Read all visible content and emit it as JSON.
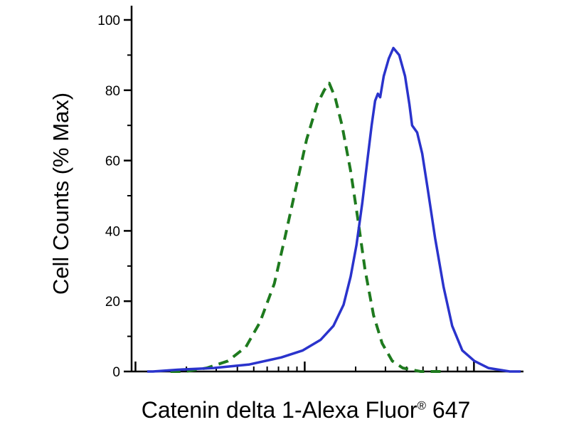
{
  "chart_data": {
    "type": "line",
    "title": "",
    "ylabel": "Cell Counts (% Max)",
    "xlabel": {
      "main": "Catenin delta 1-Alexa Fluor",
      "sup": "®",
      "end": " 647"
    },
    "ylim": [
      0,
      100
    ],
    "yticks": [
      "0",
      "20",
      "40",
      "60",
      "80",
      "100"
    ],
    "y_minor_ticks": [
      10,
      30,
      50,
      70,
      90
    ],
    "x_scale": "log",
    "x_tick_labels_visible": false,
    "x_decades": {
      "start_norm": 0.01,
      "decade_width_norm": 0.435,
      "count": 3
    },
    "grid": false,
    "legend": "none",
    "axis_color": "#000000",
    "background": "#ffffff",
    "series": [
      {
        "name": "control-dashed-green",
        "color": "#1e7a1e",
        "style": "dashed",
        "dash": [
          14,
          9
        ],
        "stroke_width": 4,
        "peak_percent": 82,
        "points": [
          [
            0.1,
            0
          ],
          [
            0.138,
            0
          ],
          [
            0.193,
            1
          ],
          [
            0.248,
            3
          ],
          [
            0.294,
            7
          ],
          [
            0.33,
            14
          ],
          [
            0.367,
            25
          ],
          [
            0.394,
            38
          ],
          [
            0.422,
            52
          ],
          [
            0.45,
            66
          ],
          [
            0.477,
            76
          ],
          [
            0.495,
            80
          ],
          [
            0.508,
            82
          ],
          [
            0.523,
            78
          ],
          [
            0.541,
            70
          ],
          [
            0.563,
            57
          ],
          [
            0.582,
            43
          ],
          [
            0.6,
            29
          ],
          [
            0.622,
            16
          ],
          [
            0.644,
            8
          ],
          [
            0.67,
            3
          ],
          [
            0.697,
            1
          ],
          [
            0.743,
            0
          ],
          [
            0.8,
            0
          ]
        ]
      },
      {
        "name": "catenin-delta-1-solid-blue",
        "color": "#2a33cc",
        "style": "solid",
        "dash": null,
        "stroke_width": 3.5,
        "peak_percent": 92,
        "points": [
          [
            0.04,
            0
          ],
          [
            0.055,
            0
          ],
          [
            0.119,
            0.5
          ],
          [
            0.211,
            1
          ],
          [
            0.303,
            2
          ],
          [
            0.385,
            4
          ],
          [
            0.44,
            6
          ],
          [
            0.486,
            9
          ],
          [
            0.519,
            13
          ],
          [
            0.545,
            19
          ],
          [
            0.563,
            27
          ],
          [
            0.578,
            36
          ],
          [
            0.593,
            48
          ],
          [
            0.606,
            60
          ],
          [
            0.617,
            70
          ],
          [
            0.626,
            77
          ],
          [
            0.633,
            79
          ],
          [
            0.639,
            78
          ],
          [
            0.648,
            84
          ],
          [
            0.661,
            89
          ],
          [
            0.673,
            92
          ],
          [
            0.688,
            90
          ],
          [
            0.703,
            84
          ],
          [
            0.714,
            76
          ],
          [
            0.721,
            70
          ],
          [
            0.734,
            68
          ],
          [
            0.747,
            62
          ],
          [
            0.761,
            52
          ],
          [
            0.78,
            38
          ],
          [
            0.802,
            24
          ],
          [
            0.824,
            13
          ],
          [
            0.85,
            6
          ],
          [
            0.881,
            3
          ],
          [
            0.917,
            1
          ],
          [
            0.972,
            0
          ],
          [
            1.0,
            0
          ]
        ]
      }
    ]
  }
}
